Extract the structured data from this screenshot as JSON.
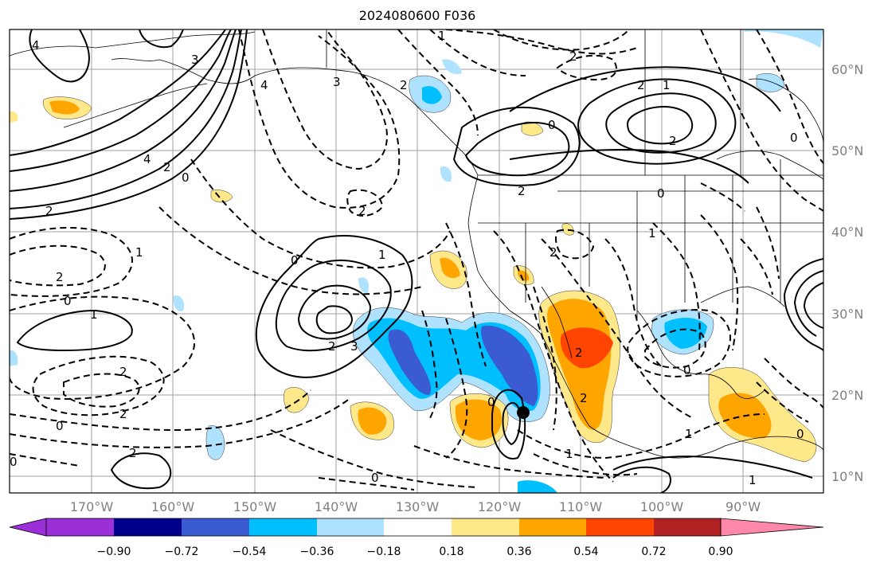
{
  "title": "2024080600 F036",
  "lat_labels": [
    "60°N",
    "50°N",
    "40°N",
    "30°N",
    "20°N",
    "10°N"
  ],
  "lon_labels": [
    "170°W",
    "160°W",
    "150°W",
    "140°W",
    "130°W",
    "120°W",
    "110°W",
    "100°W",
    "90°W"
  ],
  "colorbar": {
    "ticks": [
      "−0.90",
      "−0.72",
      "−0.54",
      "−0.36",
      "−0.18",
      "0.18",
      "0.36",
      "0.54",
      "0.72",
      "0.90"
    ],
    "colors": [
      "#9b30d9",
      "#00008b",
      "#3a5bd1",
      "#00bfff",
      "#aee2ff",
      "#ffffff",
      "#ffe88a",
      "#ffa500",
      "#ff4500",
      "#b22222",
      "#ff88aa"
    ]
  },
  "contour_labels": [
    "4",
    "3",
    "4",
    "2",
    "0",
    "2",
    "1",
    "2",
    "0",
    "1",
    "2",
    "2",
    "0",
    "0",
    "2",
    "2",
    "4",
    "3",
    "2",
    "2",
    "1",
    "0",
    "1",
    "2",
    "3",
    "2",
    "0",
    "2",
    "2",
    "1",
    "0",
    "1",
    "0",
    "2",
    "2",
    "0",
    "0",
    "1",
    "2",
    "1",
    "0",
    "1",
    "0"
  ]
}
